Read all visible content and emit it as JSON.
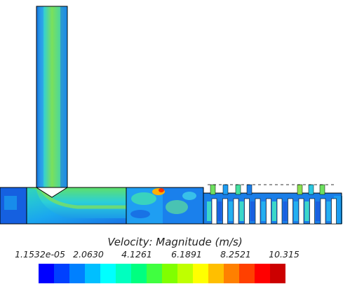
{
  "legend": {
    "title": "Velocity: Magnitude (m/s)",
    "ticks": [
      "1.1532e-05",
      "2.0630",
      "4.1261",
      "6.1891",
      "8.2521",
      "10.315"
    ],
    "values": [
      1.1532e-05,
      2.063,
      4.1261,
      6.1891,
      8.2521,
      10.315
    ],
    "bands": 16
  },
  "colors": {
    "colormap": [
      "#0000ff",
      "#0040ff",
      "#0080ff",
      "#00bfff",
      "#00ffff",
      "#00ffbf",
      "#00ff80",
      "#40ff40",
      "#80ff00",
      "#bfff00",
      "#ffff00",
      "#ffbf00",
      "#ff8000",
      "#ff4000",
      "#ff0000",
      "#cc0000"
    ],
    "domain_base": "#1a90f5",
    "inlet_core": "#49e07a",
    "outline": "#000000"
  }
}
